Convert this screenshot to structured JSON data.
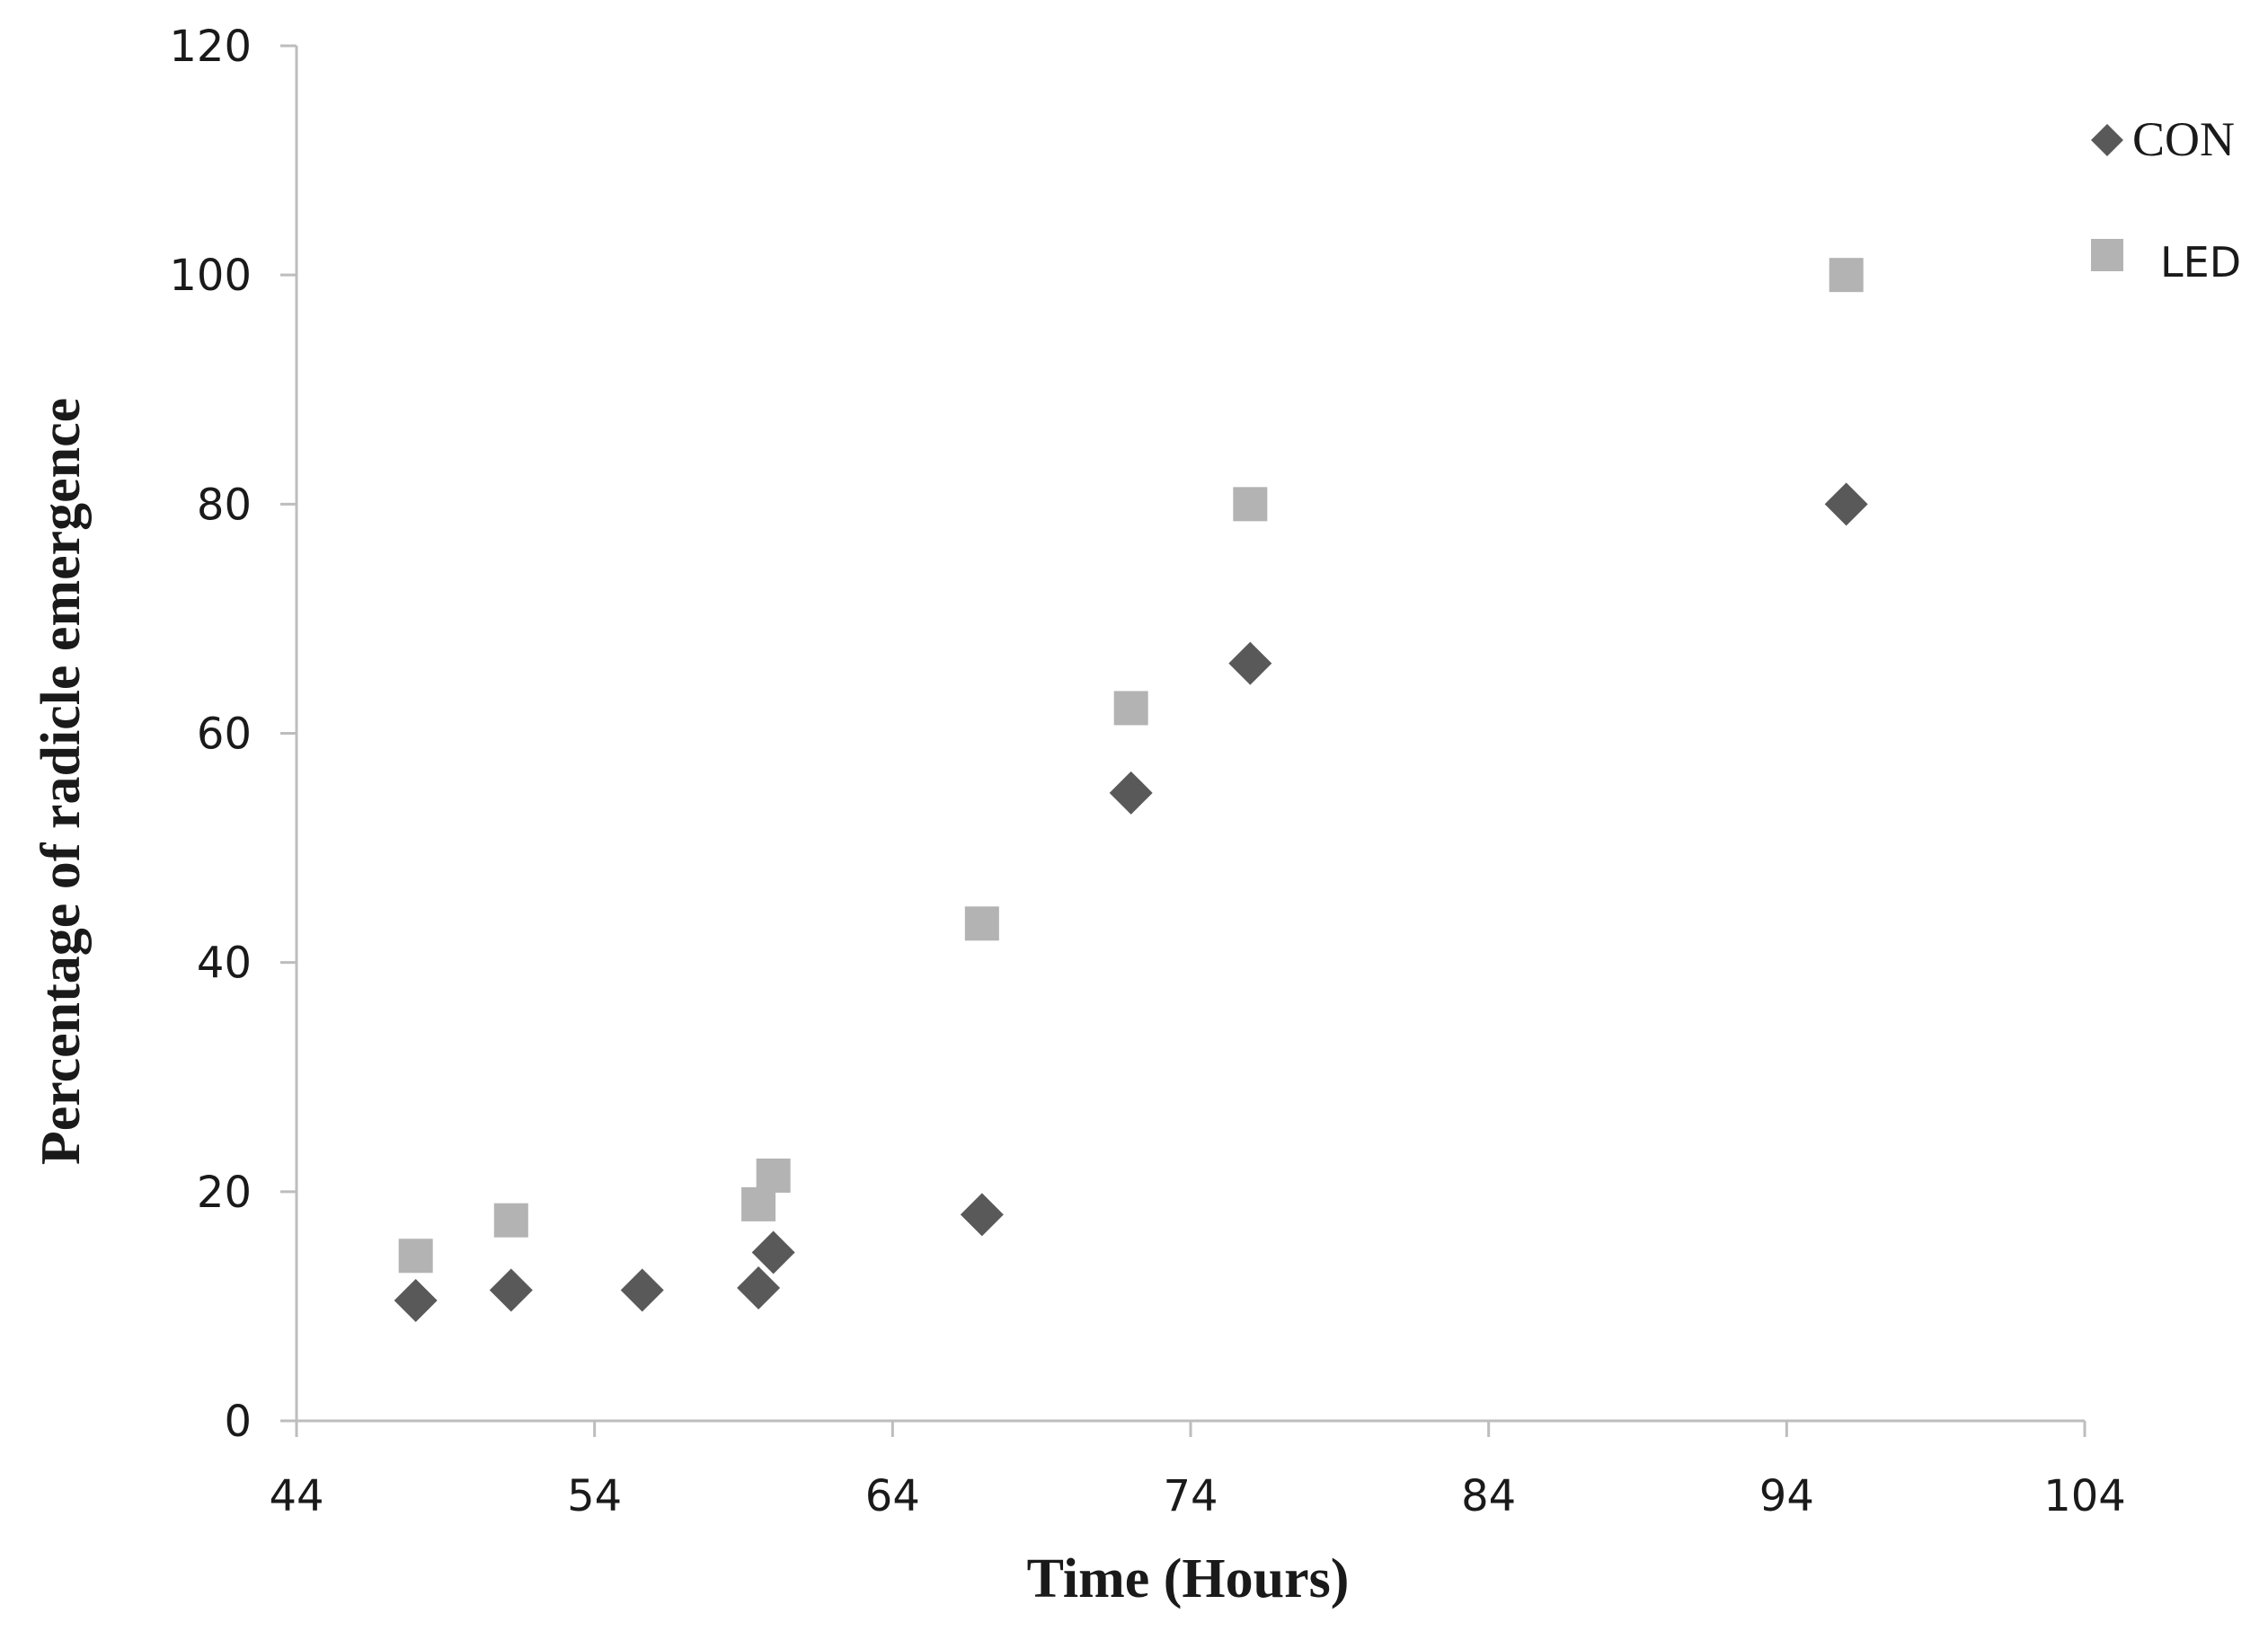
{
  "chart_data": {
    "type": "scatter",
    "xlabel": "Time (Hours)",
    "ylabel": "Percentage of radicle emergence",
    "xlim": [
      44,
      104
    ],
    "ylim": [
      0,
      120
    ],
    "xticks": [
      "44",
      "54",
      "64",
      "74",
      "84",
      "94",
      "104"
    ],
    "yticks": [
      "0",
      "20",
      "40",
      "60",
      "80",
      "100",
      "120"
    ],
    "legend_position": "top-right",
    "grid": false,
    "series": [
      {
        "name": "CON",
        "marker": "diamond",
        "color": "#595959",
        "points": [
          {
            "x": 48,
            "y": 10.5
          },
          {
            "x": 51.2,
            "y": 11.4
          },
          {
            "x": 55.6,
            "y": 11.4
          },
          {
            "x": 59.5,
            "y": 11.6
          },
          {
            "x": 60,
            "y": 14.7
          },
          {
            "x": 67,
            "y": 18
          },
          {
            "x": 72,
            "y": 54.8
          },
          {
            "x": 76,
            "y": 66.1
          },
          {
            "x": 96,
            "y": 80
          }
        ]
      },
      {
        "name": "LED",
        "marker": "square",
        "color": "#b3b3b3",
        "points": [
          {
            "x": 48,
            "y": 14.4
          },
          {
            "x": 51.2,
            "y": 17.5
          },
          {
            "x": 59.5,
            "y": 18.9
          },
          {
            "x": 60,
            "y": 21.4
          },
          {
            "x": 67,
            "y": 43.4
          },
          {
            "x": 72,
            "y": 62.2
          },
          {
            "x": 76,
            "y": 80
          },
          {
            "x": 96,
            "y": 100
          }
        ]
      }
    ]
  }
}
